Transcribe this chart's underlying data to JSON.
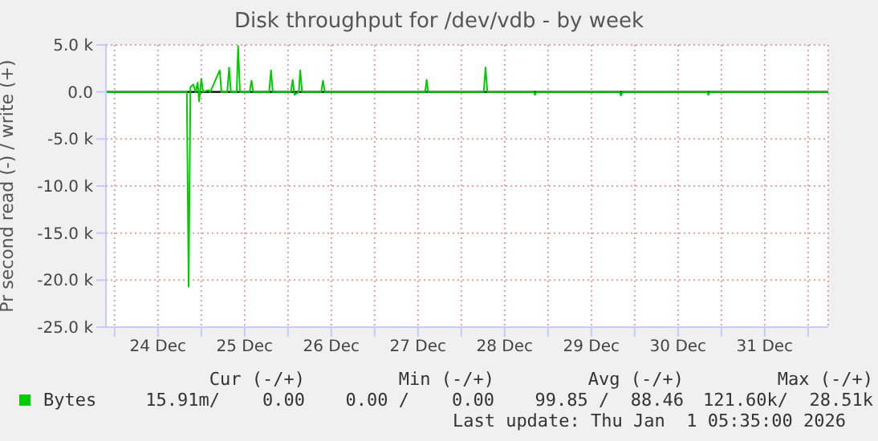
{
  "chart_data": {
    "type": "line",
    "title": "Disk throughput for /dev/vdb - by week",
    "ylabel": "Pr second read (-) / write (+)",
    "x": [
      "2025-12-23T21:36",
      "2025-12-24T20:00",
      "2025-12-24T20:30",
      "2025-12-24T21:00",
      "2025-12-24T21:48",
      "2025-12-24T22:24",
      "2025-12-24T23:00",
      "2025-12-24T23:24",
      "2025-12-25T00:00",
      "2025-12-25T00:30",
      "2025-12-25T02:00",
      "2025-12-25T02:30",
      "2025-12-25T05:06",
      "2025-12-25T05:36",
      "2025-12-25T07:12",
      "2025-12-25T07:42",
      "2025-12-25T08:12",
      "2025-12-25T09:48",
      "2025-12-25T10:12",
      "2025-12-25T10:42",
      "2025-12-25T13:24",
      "2025-12-25T13:54",
      "2025-12-25T14:24",
      "2025-12-25T18:48",
      "2025-12-25T19:18",
      "2025-12-25T19:48",
      "2025-12-26T00:48",
      "2025-12-26T01:18",
      "2025-12-26T01:48",
      "2025-12-26T03:00",
      "2025-12-26T03:24",
      "2025-12-26T03:54",
      "2025-12-26T09:12",
      "2025-12-26T09:42",
      "2025-12-26T10:12",
      "2025-12-27T14:00",
      "2025-12-27T14:24",
      "2025-12-27T14:48",
      "2025-12-28T06:12",
      "2025-12-28T06:42",
      "2025-12-28T07:12",
      "2025-12-28T20:00",
      "2025-12-28T20:24",
      "2025-12-28T20:48",
      "2025-12-29T19:48",
      "2025-12-29T20:12",
      "2025-12-29T20:36",
      "2025-12-30T20:00",
      "2025-12-30T20:24",
      "2025-12-30T20:48",
      "2026-01-01T05:35"
    ],
    "series": [
      {
        "name": "Bytes",
        "color": "#00cc00",
        "values": [
          0,
          0,
          -20700,
          500,
          800,
          0,
          1000,
          -1000,
          1400,
          0,
          200,
          0,
          2300,
          0,
          0,
          2600,
          0,
          0,
          4900,
          0,
          0,
          1200,
          0,
          0,
          2300,
          0,
          0,
          1300,
          -300,
          0,
          2300,
          0,
          0,
          1200,
          0,
          0,
          1300,
          0,
          0,
          2600,
          0,
          0,
          -300,
          0,
          0,
          -400,
          0,
          0,
          -300,
          0,
          0
        ]
      }
    ],
    "xlim": [
      "2025-12-23T21:36",
      "2026-01-01T05:35"
    ],
    "xticks": [
      {
        "value": "2025-12-24",
        "label": null
      },
      {
        "value": "2025-12-24T12:00",
        "label": "24 Dec"
      },
      {
        "value": "2025-12-25",
        "label": null
      },
      {
        "value": "2025-12-25T12:00",
        "label": "25 Dec"
      },
      {
        "value": "2025-12-26",
        "label": null
      },
      {
        "value": "2025-12-26T12:00",
        "label": "26 Dec"
      },
      {
        "value": "2025-12-27",
        "label": null
      },
      {
        "value": "2025-12-27T12:00",
        "label": "27 Dec"
      },
      {
        "value": "2025-12-28",
        "label": null
      },
      {
        "value": "2025-12-28T12:00",
        "label": "28 Dec"
      },
      {
        "value": "2025-12-29",
        "label": null
      },
      {
        "value": "2025-12-29T12:00",
        "label": "29 Dec"
      },
      {
        "value": "2025-12-30",
        "label": null
      },
      {
        "value": "2025-12-30T12:00",
        "label": "30 Dec"
      },
      {
        "value": "2025-12-31",
        "label": null
      },
      {
        "value": "2025-12-31T12:00",
        "label": "31 Dec"
      },
      {
        "value": "2026-01-01",
        "label": null
      }
    ],
    "ylim": [
      -25000,
      5000
    ],
    "yticks": [
      {
        "value": -25000,
        "label": "-25.0 k"
      },
      {
        "value": -20000,
        "label": "-20.0 k"
      },
      {
        "value": -15000,
        "label": "-15.0 k"
      },
      {
        "value": -10000,
        "label": "-10.0 k"
      },
      {
        "value": -5000,
        "label": "-5.0 k"
      },
      {
        "value": 0,
        "label": "0.0"
      },
      {
        "value": 5000,
        "label": "5.0 k"
      }
    ],
    "ref_lines": [
      {
        "axis": "y",
        "value": 0,
        "color": "#000000"
      }
    ],
    "grid": true,
    "legend": "bottom",
    "marker": "none",
    "line_style": "solid",
    "annotations": [
      "Cur (-/+)",
      "Min (-/+)",
      "Avg (-/+)",
      "Max (-/+)",
      "15.91m/    0.00",
      "0.00 /    0.00",
      "99.85 /  88.46",
      "121.60k/  28.51k",
      "Last update: Thu Jan  1 05:35:00 2026"
    ]
  }
}
